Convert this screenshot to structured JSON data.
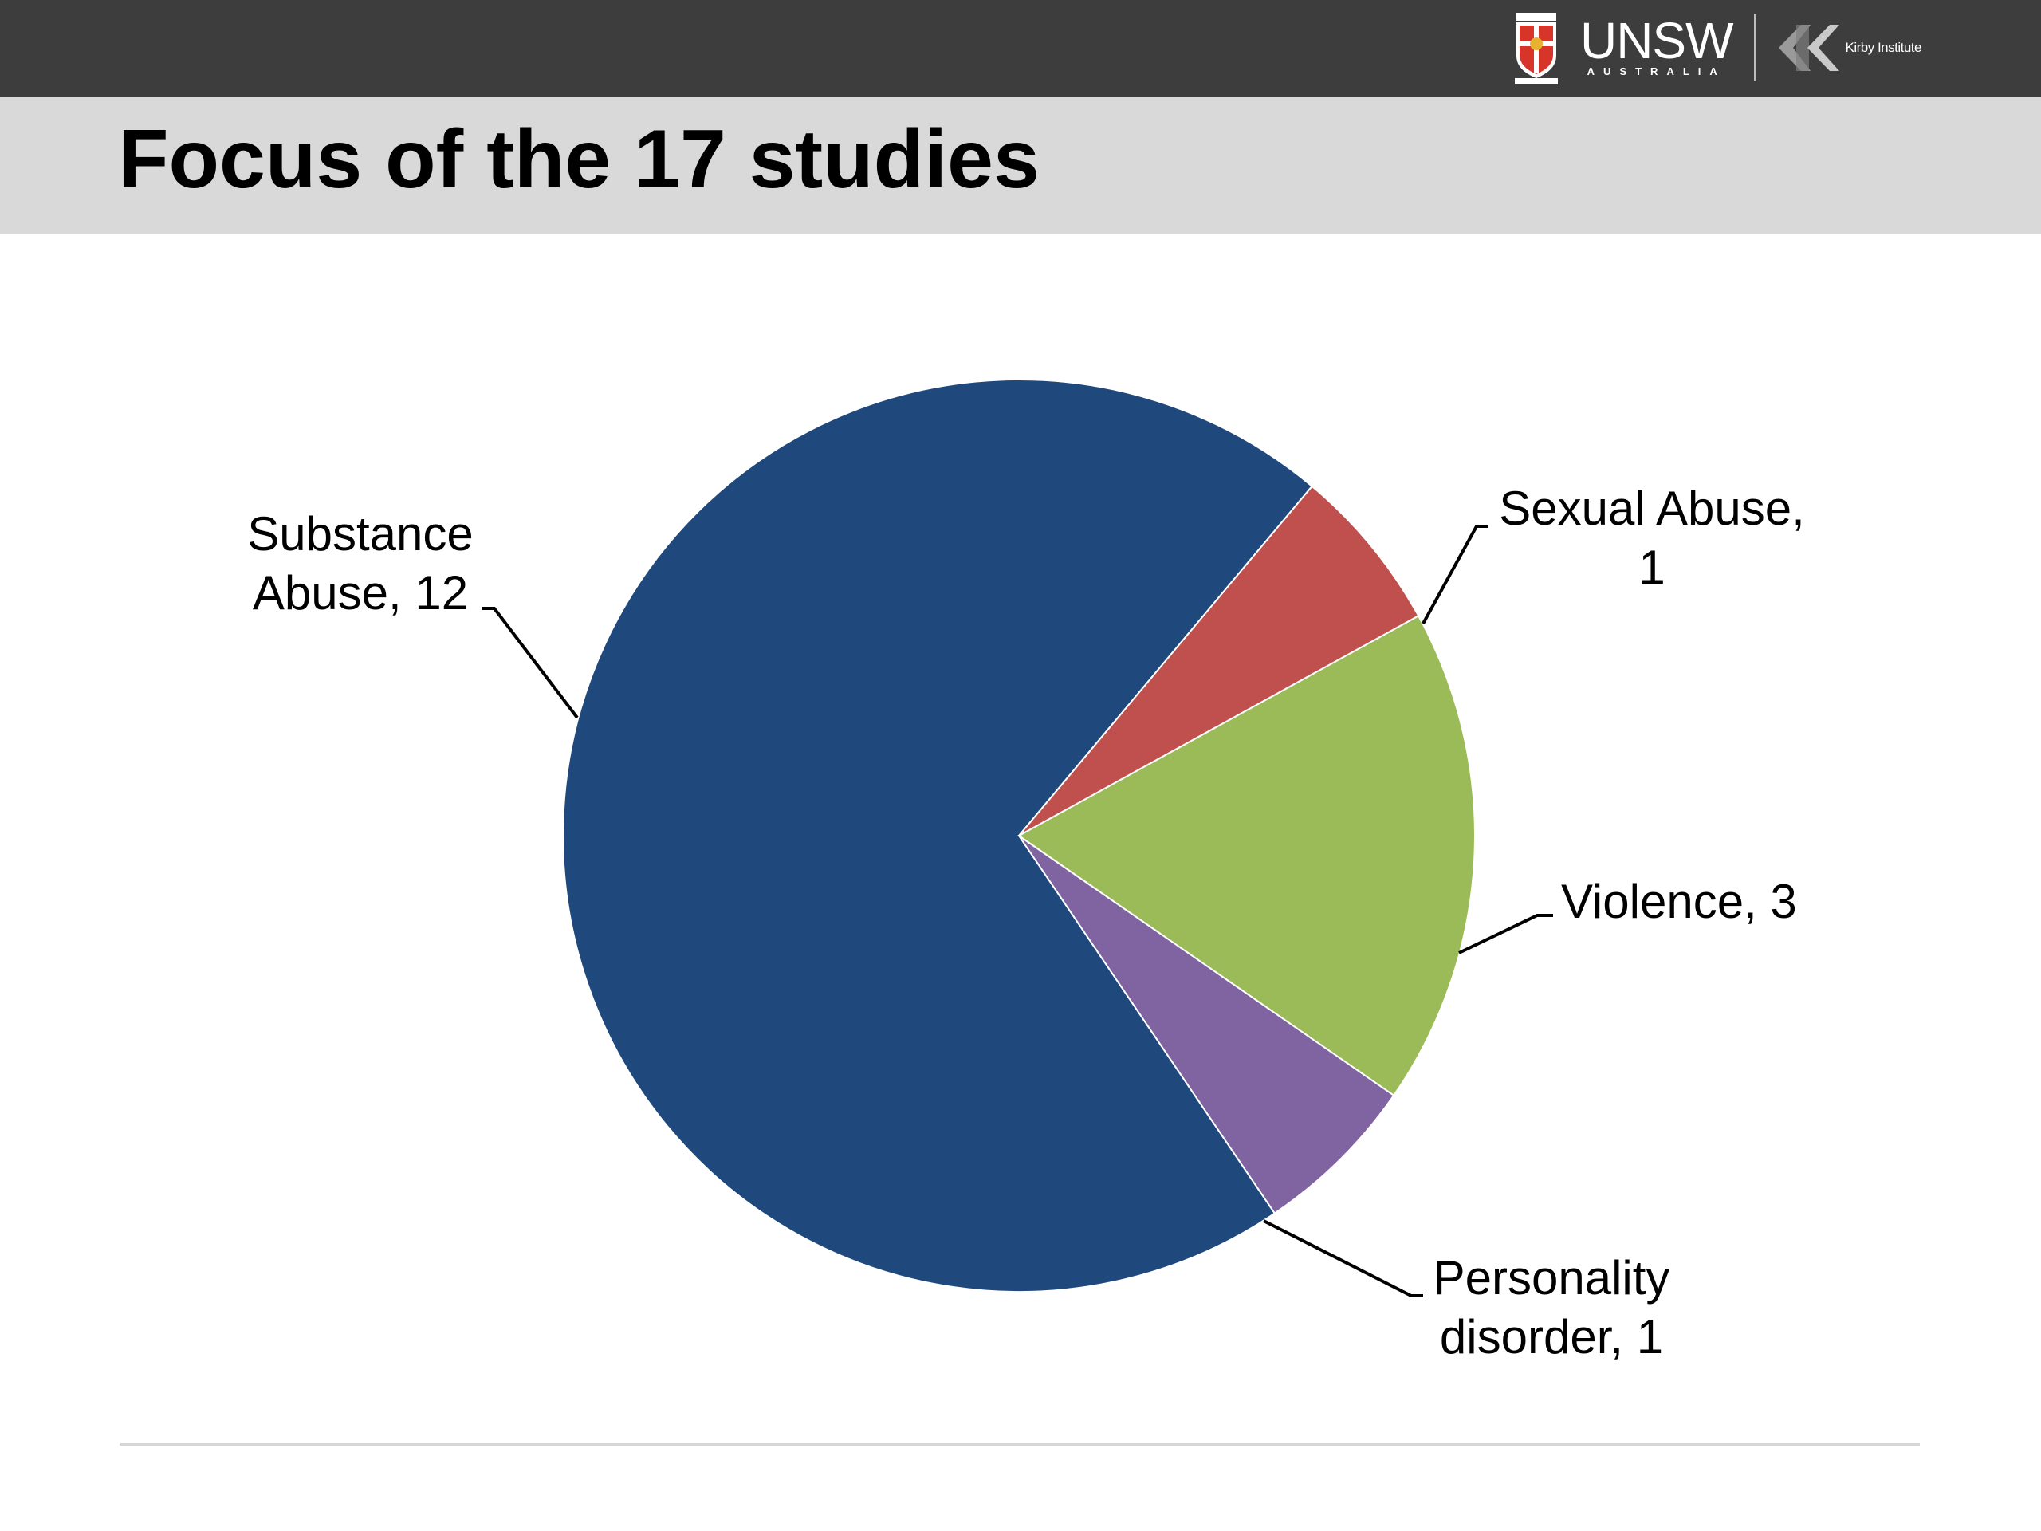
{
  "header": {
    "brand": "UNSW",
    "brand_sub": "AUSTRALIA",
    "partner": "Kirby Institute"
  },
  "slide": {
    "title": "Focus of the 17 studies"
  },
  "chart_data": {
    "type": "pie",
    "start_angle_deg": 50,
    "direction": "counterclockwise",
    "slices": [
      {
        "label": "Substance Abuse",
        "value": 12,
        "color": "#1f487c",
        "label_lines": [
          "Substance",
          "Abuse, 12"
        ]
      },
      {
        "label": "Personality disorder",
        "value": 1,
        "color": "#8064a2",
        "label_lines": [
          "Personality",
          "disorder, 1"
        ]
      },
      {
        "label": "Violence",
        "value": 3,
        "color": "#9bbb59",
        "label_lines": [
          "Violence, 3"
        ]
      },
      {
        "label": "Sexual Abuse",
        "value": 1,
        "color": "#c0504d",
        "label_lines": [
          "Sexual Abuse,",
          "1"
        ]
      }
    ],
    "data_labels": "category-and-value",
    "legend": "none"
  }
}
